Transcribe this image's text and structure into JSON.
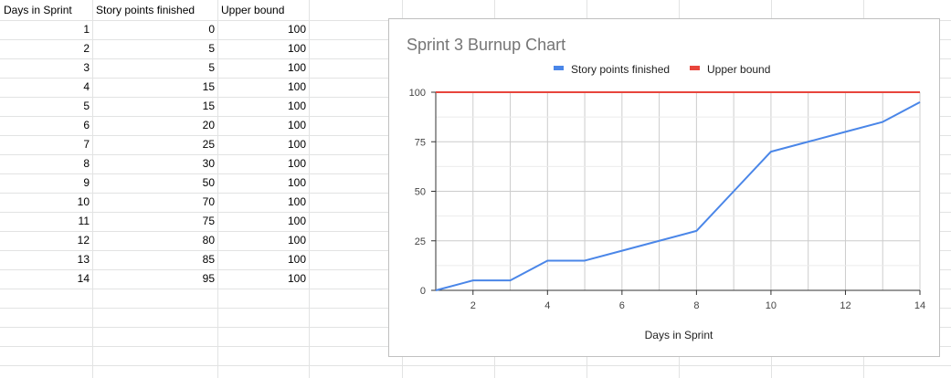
{
  "sheet": {
    "headers": [
      "Days in Sprint",
      "Story points finished",
      "Upper bound"
    ],
    "rows": [
      [
        "1",
        "0",
        "100"
      ],
      [
        "2",
        "5",
        "100"
      ],
      [
        "3",
        "5",
        "100"
      ],
      [
        "4",
        "15",
        "100"
      ],
      [
        "5",
        "15",
        "100"
      ],
      [
        "6",
        "20",
        "100"
      ],
      [
        "7",
        "25",
        "100"
      ],
      [
        "8",
        "30",
        "100"
      ],
      [
        "9",
        "50",
        "100"
      ],
      [
        "10",
        "70",
        "100"
      ],
      [
        "11",
        "75",
        "100"
      ],
      [
        "12",
        "80",
        "100"
      ],
      [
        "13",
        "85",
        "100"
      ],
      [
        "14",
        "95",
        "100"
      ]
    ]
  },
  "chart_data": {
    "type": "line",
    "title": "Sprint 3 Burnup Chart",
    "xlabel": "Days in Sprint",
    "ylabel": "",
    "x": [
      1,
      2,
      3,
      4,
      5,
      6,
      7,
      8,
      9,
      10,
      11,
      12,
      13,
      14
    ],
    "xlim": [
      1,
      14
    ],
    "ylim": [
      0,
      100
    ],
    "x_ticks": [
      2,
      4,
      6,
      8,
      10,
      12,
      14
    ],
    "y_ticks": [
      0,
      25,
      50,
      75,
      100
    ],
    "grid": true,
    "legend_position": "top",
    "series": [
      {
        "name": "Story points finished",
        "color": "#4a86e8",
        "values": [
          0,
          5,
          5,
          15,
          15,
          20,
          25,
          30,
          50,
          70,
          75,
          80,
          85,
          95
        ]
      },
      {
        "name": "Upper bound",
        "color": "#e8453c",
        "values": [
          100,
          100,
          100,
          100,
          100,
          100,
          100,
          100,
          100,
          100,
          100,
          100,
          100,
          100
        ]
      }
    ]
  }
}
